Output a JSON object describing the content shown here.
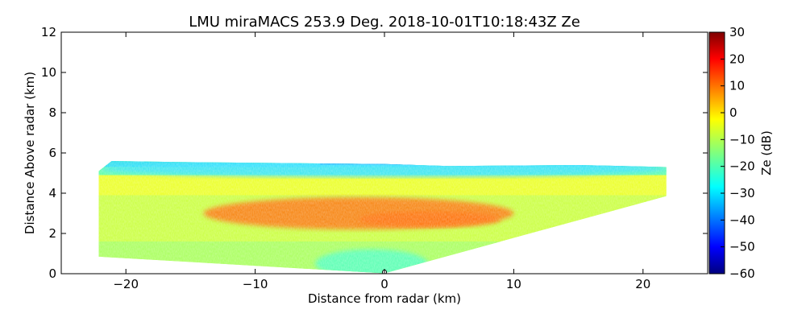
{
  "chart_data": {
    "type": "heatmap",
    "title": "LMU miraMACS 253.9 Deg. 2018-10-01T10:18:43Z  Ze",
    "xlabel": "Distance from radar (km)",
    "ylabel": "Distance Above radar  (km)",
    "xlim": [
      -25,
      25
    ],
    "ylim": [
      0,
      12
    ],
    "xticks": [
      -20,
      -10,
      0,
      10,
      20
    ],
    "xtick_labels": [
      "−20",
      "−10",
      "0",
      "10",
      "20"
    ],
    "yticks": [
      0,
      2,
      4,
      6,
      8,
      10,
      12
    ],
    "ytick_labels": [
      "0",
      "2",
      "4",
      "6",
      "8",
      "10",
      "12"
    ],
    "grid": false,
    "colorbar": {
      "label": "Ze (dB)",
      "colormap": "jet",
      "range": [
        -60,
        30
      ],
      "ticks": [
        30,
        20,
        10,
        0,
        -10,
        -20,
        -30,
        -40,
        -50,
        -60
      ],
      "tick_labels": [
        "30",
        "20",
        "10",
        "0",
        "−10",
        "−20",
        "−30",
        "−40",
        "−50",
        "−60"
      ]
    },
    "field_extent": {
      "left_edge": {
        "x": -22.1,
        "bottom_km": 0.85,
        "top_km": 5.1
      },
      "right_edge": {
        "x": 21.8,
        "bottom_km": 3.85,
        "top_km": 5.3
      },
      "echo_top_km": 5.6,
      "radar_position": [
        0,
        0
      ]
    },
    "ze_features_dB": [
      {
        "description_x": [
          -14,
          10
        ],
        "height_km": [
          2.2,
          3.8
        ],
        "peak_dB": 10
      },
      {
        "description_x": [
          -2,
          9
        ],
        "height_km": [
          2.3,
          3.1
        ],
        "peak_dB": 14
      },
      {
        "description_x": [
          -22,
          22
        ],
        "height_km": [
          4.8,
          5.6
        ],
        "peak_dB": -25
      }
    ]
  },
  "colors": {
    "background": "#ffffff",
    "axes": "#000000",
    "jet_stops": [
      "#00007f",
      "#0000ff",
      "#007fff",
      "#00ffff",
      "#7fff7f",
      "#ffff00",
      "#ff7f00",
      "#ff0000",
      "#7f0000"
    ]
  }
}
